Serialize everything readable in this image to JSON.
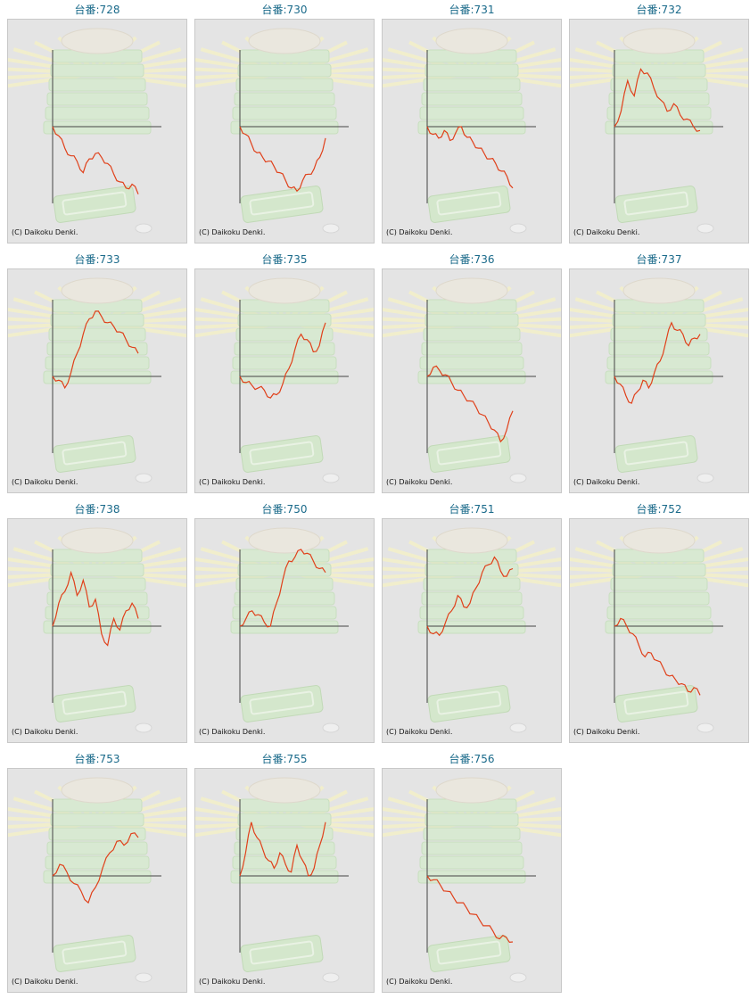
{
  "copyright": "(C) Daikoku Denki.",
  "colors": {
    "line": "#e0401a",
    "axis": "#444444",
    "frame_bg": "#e4e4e4",
    "title": "#1a6a8a"
  },
  "chart_data": [
    {
      "type": "line",
      "title": "台番:728",
      "values": [
        0,
        -12,
        -28,
        -38,
        -45,
        -60,
        -42,
        -35,
        -40,
        -48,
        -62,
        -72,
        -80,
        -75,
        -88
      ]
    },
    {
      "type": "line",
      "title": "台番:730",
      "values": [
        0,
        -10,
        -22,
        -34,
        -40,
        -45,
        -52,
        -60,
        -70,
        -80,
        -84,
        -70,
        -62,
        -55,
        -40,
        -15
      ]
    },
    {
      "type": "line",
      "title": "台番:731",
      "values": [
        0,
        -10,
        -15,
        -5,
        -18,
        -8,
        0,
        -14,
        -20,
        -28,
        -35,
        -42,
        -48,
        -58,
        -65,
        -80
      ]
    },
    {
      "type": "line",
      "title": "台番:732",
      "values": [
        0,
        20,
        60,
        40,
        75,
        70,
        50,
        35,
        20,
        30,
        15,
        10,
        0,
        -5
      ]
    },
    {
      "type": "line",
      "title": "台番:733",
      "values": [
        0,
        -5,
        -15,
        5,
        30,
        55,
        75,
        85,
        78,
        70,
        65,
        58,
        48,
        38,
        30
      ]
    },
    {
      "type": "line",
      "title": "台番:735",
      "values": [
        0,
        -8,
        -12,
        -15,
        -18,
        -28,
        -24,
        -10,
        10,
        35,
        55,
        48,
        32,
        40,
        70
      ]
    },
    {
      "type": "line",
      "title": "台番:736",
      "values": [
        0,
        12,
        8,
        2,
        -8,
        -18,
        -25,
        -32,
        -40,
        -50,
        -60,
        -70,
        -85,
        -70,
        -45
      ]
    },
    {
      "type": "line",
      "title": "台番:737",
      "values": [
        0,
        -10,
        -25,
        -35,
        -20,
        -5,
        -15,
        5,
        20,
        45,
        70,
        60,
        55,
        40,
        50,
        55
      ]
    },
    {
      "type": "line",
      "title": "台番:738",
      "values": [
        0,
        30,
        45,
        70,
        40,
        60,
        25,
        35,
        -10,
        -25,
        10,
        -5,
        20,
        30,
        10
      ]
    },
    {
      "type": "line",
      "title": "台番:750",
      "values": [
        0,
        10,
        20,
        15,
        5,
        0,
        30,
        60,
        85,
        90,
        100,
        95,
        85,
        75,
        70
      ]
    },
    {
      "type": "line",
      "title": "台番:751",
      "values": [
        0,
        -10,
        -12,
        5,
        20,
        40,
        25,
        30,
        50,
        70,
        80,
        90,
        72,
        65,
        75
      ]
    },
    {
      "type": "line",
      "title": "台番:752",
      "values": [
        0,
        10,
        0,
        -10,
        -25,
        -40,
        -35,
        -45,
        -55,
        -65,
        -70,
        -75,
        -85,
        -80,
        -90
      ]
    },
    {
      "type": "line",
      "title": "台番:753",
      "values": [
        0,
        15,
        5,
        -10,
        -20,
        -35,
        -15,
        10,
        30,
        45,
        40,
        55,
        50
      ]
    },
    {
      "type": "line",
      "title": "台番:755",
      "values": [
        0,
        30,
        70,
        50,
        35,
        20,
        10,
        30,
        15,
        5,
        40,
        20,
        0,
        10,
        40,
        70
      ]
    },
    {
      "type": "line",
      "title": "台番:756",
      "values": [
        0,
        -5,
        -12,
        -20,
        -28,
        -35,
        -42,
        -50,
        -58,
        -65,
        -72,
        -82,
        -80,
        -86
      ]
    }
  ]
}
